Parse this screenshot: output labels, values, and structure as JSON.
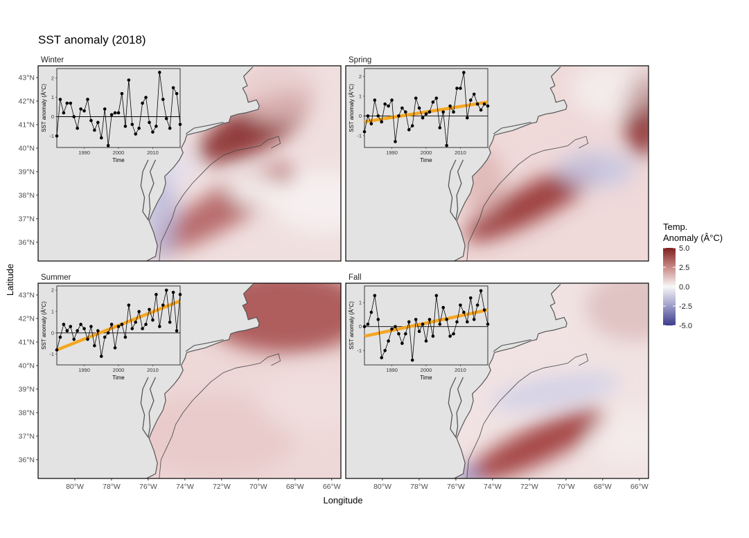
{
  "figure": {
    "title": "SST anomaly (2018)"
  },
  "axes": {
    "xlabel": "Longitude",
    "ylabel": "Latitude",
    "lon_range": [
      -82,
      -65.5
    ],
    "lat_range": [
      35.2,
      43.5
    ],
    "x_ticks": [
      "80°W",
      "78°W",
      "76°W",
      "74°W",
      "72°W",
      "70°W",
      "68°W",
      "66°W"
    ],
    "x_tick_values": [
      -80,
      -78,
      -76,
      -74,
      -72,
      -70,
      -68,
      -66
    ],
    "y_ticks": [
      "43°N",
      "42°N",
      "41°N",
      "40°N",
      "39°N",
      "38°N",
      "37°N",
      "36°N"
    ],
    "y_tick_values": [
      43,
      42,
      41,
      40,
      39,
      38,
      37,
      36
    ]
  },
  "legend": {
    "title_line1": "Temp.",
    "title_line2": "Anomaly (Â°C)",
    "ticks": [
      "5.0",
      "2.5",
      "0.0",
      "-2.5",
      "-5.0"
    ],
    "tick_values": [
      5,
      2.5,
      0,
      -2.5,
      -5
    ],
    "colors": {
      "high": "#7f1f1f",
      "mid": "#f7f7f7",
      "low": "#3b3b8c"
    }
  },
  "colors": {
    "land": "#e3e3e3",
    "coast": "#555555",
    "trend": "#f5a623",
    "point": "#000000"
  },
  "inset": {
    "xlabel": "Time",
    "ylabel": "SST anomaly (Â°C)",
    "x_ticks": [
      "1990",
      "2000",
      "2010"
    ],
    "x_tick_values": [
      1990,
      2000,
      2010
    ],
    "x_range": [
      1982,
      2018
    ]
  },
  "chart_data": [
    {
      "type": "line",
      "season": "Winter",
      "ylim": [
        -1.6,
        2.5
      ],
      "y_ticks": [
        -1,
        0,
        1,
        2
      ],
      "trend": null,
      "x": [
        1982,
        1983,
        1984,
        1985,
        1986,
        1987,
        1988,
        1989,
        1990,
        1991,
        1992,
        1993,
        1994,
        1995,
        1996,
        1997,
        1998,
        1999,
        2000,
        2001,
        2002,
        2003,
        2004,
        2005,
        2006,
        2007,
        2008,
        2009,
        2010,
        2011,
        2012,
        2013,
        2014,
        2015,
        2016,
        2017,
        2018
      ],
      "values": [
        -1.0,
        0.9,
        0.2,
        0.7,
        0.7,
        0.0,
        -0.6,
        0.4,
        0.3,
        0.9,
        -0.2,
        -0.7,
        -0.3,
        -1.1,
        0.4,
        -1.5,
        0.1,
        0.2,
        0.2,
        1.2,
        -0.5,
        1.9,
        -0.4,
        -0.9,
        -0.6,
        0.7,
        1.0,
        -0.3,
        -0.8,
        -0.5,
        2.3,
        0.9,
        -0.1,
        -0.6,
        1.5,
        1.2,
        -0.4
      ]
    },
    {
      "type": "line",
      "season": "Spring",
      "ylim": [
        -1.6,
        2.4
      ],
      "y_ticks": [
        -1,
        0,
        1,
        2
      ],
      "trend": [
        -0.3,
        0.7
      ],
      "x": [
        1982,
        1983,
        1984,
        1985,
        1986,
        1987,
        1988,
        1989,
        1990,
        1991,
        1992,
        1993,
        1994,
        1995,
        1996,
        1997,
        1998,
        1999,
        2000,
        2001,
        2002,
        2003,
        2004,
        2005,
        2006,
        2007,
        2008,
        2009,
        2010,
        2011,
        2012,
        2013,
        2014,
        2015,
        2016,
        2017,
        2018
      ],
      "values": [
        -0.8,
        0.0,
        -0.4,
        0.8,
        0.0,
        -0.3,
        0.6,
        0.5,
        0.8,
        -1.3,
        0.0,
        0.4,
        0.2,
        -0.7,
        -0.5,
        0.9,
        0.4,
        -0.1,
        0.1,
        0.2,
        0.7,
        0.9,
        -0.6,
        0.2,
        -1.5,
        0.5,
        0.2,
        1.4,
        1.4,
        2.2,
        -0.1,
        0.8,
        1.1,
        0.6,
        0.3,
        0.6,
        0.5
      ]
    },
    {
      "type": "line",
      "season": "Summer",
      "ylim": [
        -1.5,
        2.2
      ],
      "y_ticks": [
        -1,
        0,
        1,
        2
      ],
      "trend": [
        -0.8,
        1.5
      ],
      "x": [
        1982,
        1983,
        1984,
        1985,
        1986,
        1987,
        1988,
        1989,
        1990,
        1991,
        1992,
        1993,
        1994,
        1995,
        1996,
        1997,
        1998,
        1999,
        2000,
        2001,
        2002,
        2003,
        2004,
        2005,
        2006,
        2007,
        2008,
        2009,
        2010,
        2011,
        2012,
        2013,
        2014,
        2015,
        2016,
        2017,
        2018
      ],
      "values": [
        -0.8,
        -0.2,
        0.4,
        0.1,
        0.3,
        -0.3,
        0.1,
        0.4,
        0.2,
        -0.3,
        0.3,
        -0.6,
        0.1,
        -1.1,
        -0.2,
        0.0,
        0.4,
        -0.7,
        0.3,
        0.4,
        -0.2,
        1.3,
        0.2,
        0.5,
        1.0,
        0.2,
        0.4,
        1.1,
        0.6,
        1.8,
        0.3,
        1.3,
        2.0,
        0.5,
        1.9,
        0.1,
        1.8
      ]
    },
    {
      "type": "line",
      "season": "Fall",
      "ylim": [
        -1.6,
        1.7
      ],
      "y_ticks": [
        -1,
        0,
        1
      ],
      "trend": [
        -0.4,
        0.7
      ],
      "x": [
        1982,
        1983,
        1984,
        1985,
        1986,
        1987,
        1988,
        1989,
        1990,
        1991,
        1992,
        1993,
        1994,
        1995,
        1996,
        1997,
        1998,
        1999,
        2000,
        2001,
        2002,
        2003,
        2004,
        2005,
        2006,
        2007,
        2008,
        2009,
        2010,
        2011,
        2012,
        2013,
        2014,
        2015,
        2016,
        2017,
        2018
      ],
      "values": [
        0.0,
        0.1,
        0.6,
        1.3,
        0.3,
        -1.3,
        -1.0,
        -0.6,
        -0.1,
        0.0,
        -0.3,
        -0.7,
        -0.3,
        0.2,
        -1.4,
        0.3,
        -0.2,
        0.1,
        -0.6,
        0.3,
        -0.4,
        1.3,
        0.1,
        0.8,
        0.3,
        -0.4,
        -0.3,
        0.2,
        0.9,
        0.6,
        0.2,
        1.2,
        0.3,
        0.9,
        1.5,
        0.7,
        0.1
      ]
    }
  ]
}
